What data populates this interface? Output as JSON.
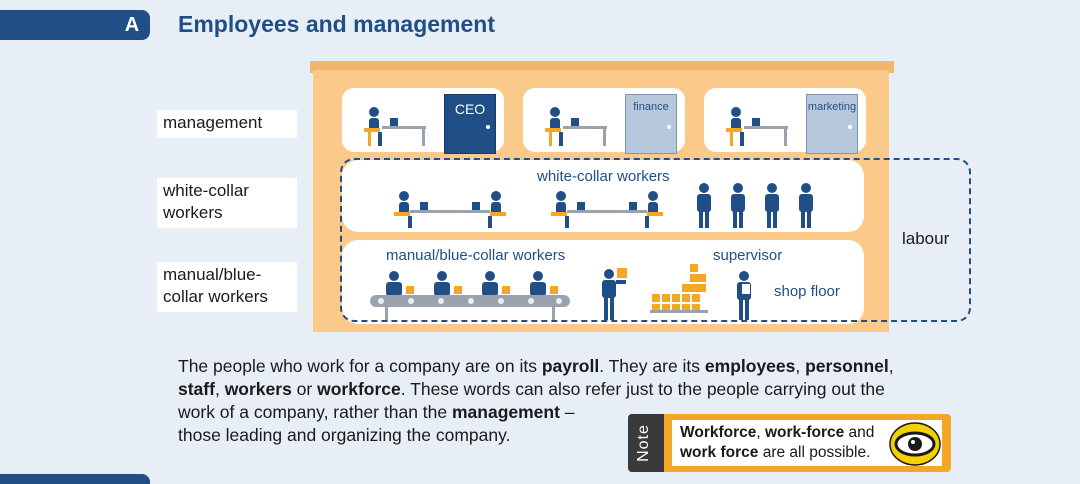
{
  "section": {
    "letter": "A",
    "title": "Employees and management"
  },
  "side_labels": {
    "management": "management",
    "white_collar": [
      "white-collar",
      "workers"
    ],
    "manual": [
      "manual/blue-",
      "collar workers"
    ]
  },
  "illustration": {
    "offices": [
      {
        "door_label": "CEO"
      },
      {
        "door_label": "finance"
      },
      {
        "door_label": "marketing"
      }
    ],
    "white_collar_label": "white-collar workers",
    "manual_label": "manual/blue-collar workers",
    "supervisor_label": "supervisor",
    "shop_floor_label": "shop floor",
    "labour_label": "labour"
  },
  "paragraph": {
    "parts": [
      "The people who work for a company are on its ",
      "payroll",
      ". They are its ",
      "employees",
      ", ",
      "personnel",
      ", ",
      "staff",
      ", ",
      "workers",
      " or ",
      "workforce",
      ". These words can also refer just to the people carrying out the",
      "work of a company, rather than the ",
      "management",
      " –",
      "those leading and organizing the company."
    ]
  },
  "note": {
    "tab_label": "Note",
    "parts": [
      "Workforce",
      ", ",
      "work-force",
      " and",
      "work force",
      " are all possible."
    ]
  },
  "colors": {
    "navy": "#1f4f86",
    "orange": "#fbc98a",
    "note_orange": "#f4a724",
    "background": "#e8eef6"
  },
  "icons": [
    "person-at-desk-icon",
    "standing-person-icon",
    "boxes-icon",
    "eye-badge-icon"
  ]
}
